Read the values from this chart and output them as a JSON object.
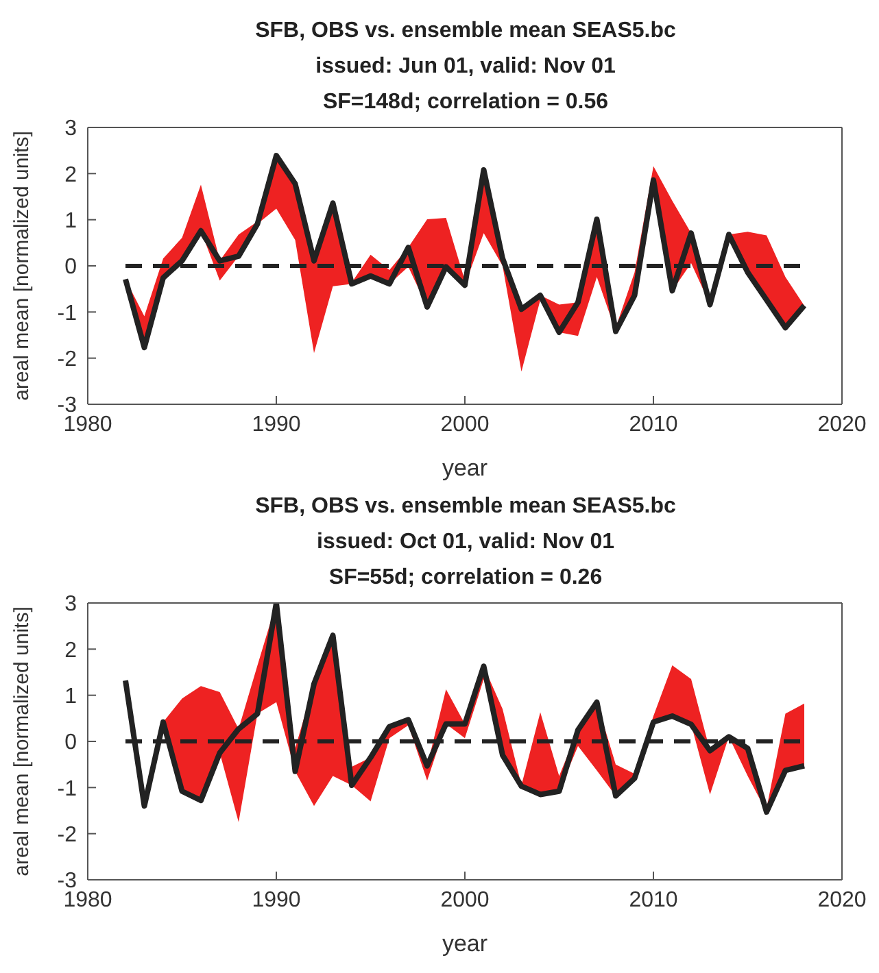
{
  "chart_data": [
    {
      "type": "line",
      "title": "SFB, OBS vs. ensemble mean SEAS5.bc",
      "subtitle": "issued: Jun 01, valid: Nov 01\nSF=148d; correlation = 0.56",
      "xlabel": "year",
      "ylabel": "areal mean [normalized units]",
      "x": [
        1982,
        1983,
        1984,
        1985,
        1986,
        1987,
        1988,
        1989,
        1990,
        1991,
        1992,
        1993,
        1994,
        1995,
        1996,
        1997,
        1998,
        1999,
        2000,
        2001,
        2002,
        2003,
        2004,
        2005,
        2006,
        2007,
        2008,
        2009,
        2010,
        2011,
        2012,
        2013,
        2014,
        2015,
        2016,
        2017,
        2018
      ],
      "series": [
        {
          "color": "#222222",
          "values": [
            -0.29,
            -1.77,
            -0.26,
            0.11,
            0.76,
            0.11,
            0.21,
            0.91,
            2.39,
            1.78,
            0.11,
            1.36,
            -0.39,
            -0.22,
            -0.39,
            0.4,
            -0.89,
            -0.02,
            -0.42,
            2.08,
            0.16,
            -0.94,
            -0.64,
            -1.44,
            -0.79,
            1.01,
            -1.42,
            -0.64,
            1.86,
            -0.54,
            0.71,
            -0.84,
            0.68,
            -0.14,
            -0.74,
            -1.34,
            -0.86
          ],
          "lower": [
            -0.44,
            -1.77,
            -0.26,
            0.11,
            0.76,
            -0.32,
            0.21,
            0.91,
            1.24,
            0.56,
            -1.89,
            -0.44,
            -0.39,
            -0.22,
            -0.39,
            -0.02,
            -0.89,
            -0.02,
            -0.42,
            0.71,
            0.0,
            -2.29,
            -0.74,
            -1.44,
            -1.52,
            -0.24,
            -1.42,
            -0.64,
            1.86,
            -0.54,
            0.06,
            -0.84,
            0.56,
            -0.14,
            -0.74,
            -1.34,
            -0.89
          ],
          "upper": [
            -0.29,
            -1.09,
            0.16,
            0.61,
            1.76,
            0.11,
            0.68,
            0.96,
            2.39,
            1.78,
            0.11,
            1.36,
            -0.36,
            0.24,
            -0.09,
            0.4,
            1.01,
            1.04,
            -0.32,
            2.08,
            0.16,
            -0.94,
            -0.64,
            -0.84,
            -0.79,
            1.01,
            -1.34,
            -0.14,
            2.16,
            1.41,
            0.71,
            -0.69,
            0.68,
            0.74,
            0.66,
            -0.24,
            -0.86
          ]
        }
      ],
      "ref_lines": [
        {
          "axis": "y",
          "value": 0,
          "color": "#222222",
          "line_style": "dashed"
        }
      ],
      "xlim": [
        1980,
        2020
      ],
      "xticks": [
        1980,
        1990,
        2000,
        2010,
        2020
      ],
      "ylim": [
        -3,
        3
      ],
      "yticks": [
        -3,
        -2,
        -1,
        0,
        1,
        2,
        3
      ],
      "grid": false,
      "legend": false,
      "marker": "none",
      "line_style": "solid"
    },
    {
      "type": "line",
      "title": "SFB, OBS vs. ensemble mean SEAS5.bc",
      "subtitle": "issued: Oct 01, valid: Nov 01\nSF=55d; correlation = 0.26",
      "xlabel": "year",
      "ylabel": "areal mean [normalized units]",
      "x": [
        1982,
        1983,
        1984,
        1985,
        1986,
        1987,
        1988,
        1989,
        1990,
        1991,
        1992,
        1993,
        1994,
        1995,
        1996,
        1997,
        1998,
        1999,
        2000,
        2001,
        2002,
        2003,
        2004,
        2005,
        2006,
        2007,
        2008,
        2009,
        2010,
        2011,
        2012,
        2013,
        2014,
        2015,
        2016,
        2017,
        2018
      ],
      "series": [
        {
          "color": "#222222",
          "values": [
            1.32,
            -1.4,
            0.42,
            -1.08,
            -1.28,
            -0.25,
            0.27,
            0.6,
            3.0,
            -0.65,
            1.25,
            2.3,
            -0.95,
            -0.35,
            0.32,
            0.47,
            -0.53,
            0.38,
            0.38,
            1.63,
            -0.3,
            -0.97,
            -1.15,
            -1.08,
            0.25,
            0.85,
            -1.18,
            -0.8,
            0.42,
            0.55,
            0.37,
            -0.2,
            0.1,
            -0.15,
            -1.53,
            -0.63,
            -0.53
          ],
          "lower": [
            1.3,
            -1.4,
            0.25,
            -1.08,
            -1.28,
            -0.25,
            -1.75,
            0.6,
            0.85,
            -0.65,
            -1.4,
            -0.75,
            -0.95,
            -1.3,
            0.07,
            0.35,
            -0.85,
            0.38,
            0.07,
            1.35,
            -0.3,
            -0.97,
            -1.15,
            -1.08,
            -0.1,
            -0.63,
            -1.18,
            -0.8,
            0.42,
            0.55,
            0.37,
            -1.15,
            0.1,
            -0.75,
            -1.53,
            -0.63,
            -0.53
          ],
          "upper": [
            1.32,
            -1.3,
            0.42,
            0.93,
            1.2,
            1.07,
            0.27,
            1.65,
            3.0,
            -0.15,
            1.25,
            2.3,
            -0.55,
            -0.35,
            0.32,
            0.47,
            -0.53,
            1.13,
            0.38,
            1.63,
            0.7,
            -0.95,
            0.63,
            -0.75,
            0.25,
            0.85,
            -0.5,
            -0.7,
            0.55,
            1.65,
            1.35,
            -0.2,
            0.15,
            -0.15,
            -1.45,
            0.6,
            0.82
          ]
        }
      ],
      "ref_lines": [
        {
          "axis": "y",
          "value": 0,
          "color": "#222222",
          "line_style": "dashed"
        }
      ],
      "xlim": [
        1980,
        2020
      ],
      "xticks": [
        1980,
        1990,
        2000,
        2010,
        2020
      ],
      "ylim": [
        -3,
        3
      ],
      "yticks": [
        -3,
        -2,
        -1,
        0,
        1,
        2,
        3
      ],
      "grid": false,
      "legend": false,
      "marker": "none",
      "line_style": "solid"
    }
  ]
}
